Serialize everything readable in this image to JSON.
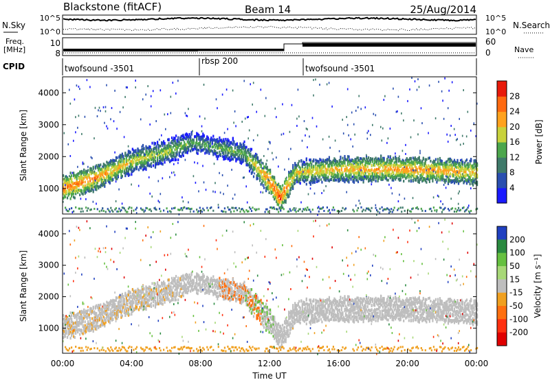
{
  "header": {
    "station": "Blackstone (fitACF)",
    "beam": "Beam 14",
    "date": "25/Aug/2014"
  },
  "noise_panel": {
    "left_label": "N.Sky",
    "right_label": "N.Search",
    "left_ticks": [
      "10^5",
      "10^0"
    ],
    "right_ticks": [
      "10^5",
      "10^0"
    ]
  },
  "freq_panel": {
    "left_label_top": "Freq.",
    "left_label_bottom": "[MHz]",
    "left_ticks": [
      "10",
      "8"
    ],
    "right_label": "Nave",
    "right_ticks": [
      "60",
      "0"
    ]
  },
  "cpid": {
    "label": "CPID",
    "segments": [
      {
        "name": "twofsound -3501",
        "start_hour": 0,
        "end_hour": 8
      },
      {
        "name": "rbsp 200",
        "start_hour": 8,
        "end_hour": 14
      },
      {
        "name": "twofsound -3501",
        "start_hour": 14,
        "end_hour": 24
      }
    ]
  },
  "x_axis": {
    "label": "Time UT",
    "ticks": [
      "00:00",
      "04:00",
      "08:00",
      "12:00",
      "16:00",
      "20:00",
      "00:00"
    ]
  },
  "chart_data": [
    {
      "type": "heatmap",
      "name": "power",
      "ylabel": "Slant Range [km]",
      "xlabel": "Time UT",
      "xlim_hours": [
        0,
        24
      ],
      "ylim": [
        200,
        4500
      ],
      "yticks": [
        1000,
        2000,
        3000,
        4000
      ],
      "colorbar": {
        "label": "Power [dB]",
        "ticks": [
          4,
          8,
          12,
          16,
          20,
          24,
          28
        ],
        "colors": [
          "#1a1aff",
          "#2a4fb0",
          "#3f7a6a",
          "#4ca64c",
          "#c8d23c",
          "#ffa21e",
          "#ff6a10",
          "#e81a0a"
        ]
      },
      "scatter_band": [
        {
          "hour": 0,
          "range_km": 1000,
          "power_db": 26
        },
        {
          "hour": 2,
          "range_km": 1350,
          "power_db": 24
        },
        {
          "hour": 4,
          "range_km": 1850,
          "power_db": 20
        },
        {
          "hour": 6,
          "range_km": 2150,
          "power_db": 18
        },
        {
          "hour": 7.5,
          "range_km": 2450,
          "power_db": 14
        },
        {
          "hour": 10.5,
          "range_km": 2100,
          "power_db": 16
        },
        {
          "hour": 12,
          "range_km": 1200,
          "power_db": 26
        },
        {
          "hour": 12.6,
          "range_km": 700,
          "power_db": 28
        },
        {
          "hour": 13.5,
          "range_km": 1500,
          "power_db": 20
        },
        {
          "hour": 16,
          "range_km": 1600,
          "power_db": 22
        },
        {
          "hour": 20,
          "range_km": 1600,
          "power_db": 24
        },
        {
          "hour": 24,
          "range_km": 1500,
          "power_db": 22
        }
      ]
    },
    {
      "type": "heatmap",
      "name": "velocity",
      "ylabel": "Slant Range [km]",
      "xlabel": "Time UT",
      "xlim_hours": [
        0,
        24
      ],
      "ylim": [
        200,
        4500
      ],
      "yticks": [
        1000,
        2000,
        3000,
        4000
      ],
      "colorbar": {
        "label": "Velocity [m s⁻¹]",
        "ticks": [
          200,
          100,
          50,
          15,
          -15,
          -50,
          -100,
          -200
        ],
        "colors": [
          "#2040c0",
          "#2a8a40",
          "#66c040",
          "#a8d878",
          "#bebebe",
          "#f0a020",
          "#ff7010",
          "#ff3010",
          "#e00000"
        ]
      },
      "ground_scatter_color": "#bebebe"
    }
  ]
}
